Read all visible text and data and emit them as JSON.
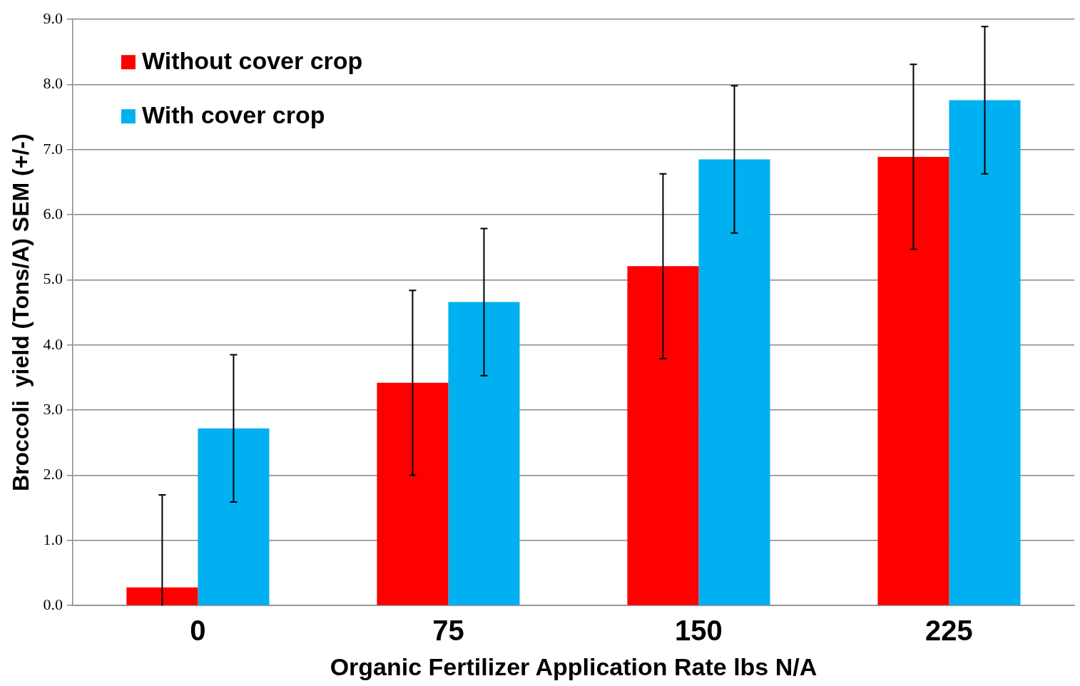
{
  "chart_data": {
    "type": "bar",
    "xlabel": "Organic Fertilizer Application Rate lbs N/A",
    "ylabel": "Broccoli  yield (Tons/A) SEM (+/-)",
    "categories": [
      "0",
      "75",
      "150",
      "225"
    ],
    "series": [
      {
        "name": "Without cover crop",
        "color": "#ff0000",
        "values": [
          0.28,
          3.42,
          5.21,
          6.89
        ],
        "errors": [
          [
            0,
            1.7
          ],
          1.42,
          1.42,
          1.42
        ]
      },
      {
        "name": "With cover crop",
        "color": "#00b0f0",
        "values": [
          2.72,
          4.66,
          6.85,
          7.76
        ],
        "errors": [
          1.13,
          1.13,
          1.13,
          1.13
        ]
      }
    ],
    "ylim": [
      0,
      9
    ],
    "yticks": [
      {
        "value": 0,
        "label": "0.0"
      },
      {
        "value": 1,
        "label": "1.0"
      },
      {
        "value": 2,
        "label": "2.0"
      },
      {
        "value": 3,
        "label": "3.0"
      },
      {
        "value": 4,
        "label": "4.0"
      },
      {
        "value": 5,
        "label": "5.0"
      },
      {
        "value": 6,
        "label": "6.0"
      },
      {
        "value": 7,
        "label": "7.0"
      },
      {
        "value": 8,
        "label": "8.0"
      },
      {
        "value": 9,
        "label": "9.0"
      }
    ],
    "grid": "y",
    "legend": "top left"
  }
}
